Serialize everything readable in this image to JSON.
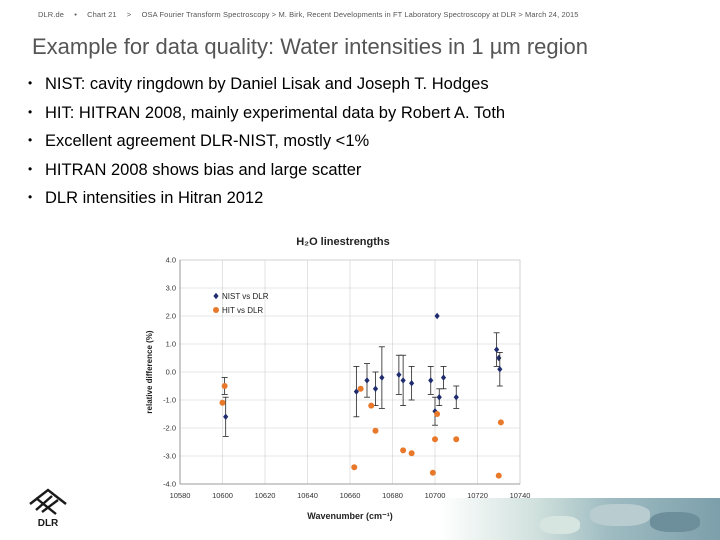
{
  "header": {
    "org": "DLR.de",
    "sep": "•",
    "chart_no": "Chart 21",
    "gt": ">",
    "talk": "OSA Fourier Transform Spectroscopy > M. Birk, Recent Developments in FT Laboratory Spectroscopy at DLR > March 24, 2015"
  },
  "title": "Example for data quality: Water intensities in 1 µm region",
  "bullets": [
    "NIST: cavity ringdown by Daniel Lisak and Joseph T. Hodges",
    "HIT: HITRAN 2008, mainly experimental data by Robert A. Toth",
    "Excellent agreement DLR-NIST, mostly <1%",
    "HITRAN 2008 shows bias and large scatter",
    "DLR intensities in Hitran 2012"
  ],
  "logo_text": "DLR",
  "colors": {
    "nist": "#1f2d6e",
    "hit": "#e8792a",
    "grid": "#d0d0d0"
  },
  "chart_data": {
    "type": "scatter",
    "title": "H₂O linestrengths",
    "xlabel": "Wavenumber (cm⁻¹)",
    "ylabel": "relative difference (%)",
    "xlim": [
      10580,
      10740
    ],
    "ylim": [
      -4.0,
      4.0
    ],
    "xticks": [
      "10580",
      "10600",
      "10620",
      "10640",
      "10660",
      "10680",
      "10700",
      "10720",
      "10740"
    ],
    "yticks": [
      "4.0",
      "3.0",
      "2.0",
      "1.0",
      "0.0",
      "-1.0",
      "-2.0",
      "-3.0",
      "-4.0"
    ],
    "grid": true,
    "legend_position": "top-left",
    "series": [
      {
        "name": "NIST vs DLR",
        "color": "#1f2d6e",
        "marker": "diamond",
        "points": [
          {
            "x": 10601,
            "y": -0.5,
            "err": 0.3
          },
          {
            "x": 10601.5,
            "y": -1.6,
            "err": 0.7
          },
          {
            "x": 10663,
            "y": -0.7,
            "err": 0.9
          },
          {
            "x": 10668,
            "y": -0.3,
            "err": 0.6
          },
          {
            "x": 10672,
            "y": -0.6,
            "err": 0.6
          },
          {
            "x": 10675,
            "y": -0.2,
            "err": 1.1
          },
          {
            "x": 10683,
            "y": -0.1,
            "err": 0.7
          },
          {
            "x": 10685,
            "y": -0.3,
            "err": 0.9
          },
          {
            "x": 10689,
            "y": -0.4,
            "err": 0.6
          },
          {
            "x": 10698,
            "y": -0.3,
            "err": 0.5
          },
          {
            "x": 10700,
            "y": -1.4,
            "err": 0.5
          },
          {
            "x": 10701,
            "y": 2.0
          },
          {
            "x": 10702,
            "y": -0.9,
            "err": 0.3
          },
          {
            "x": 10704,
            "y": -0.2,
            "err": 0.4
          },
          {
            "x": 10710,
            "y": -0.9,
            "err": 0.4
          },
          {
            "x": 10729,
            "y": 0.8,
            "err": 0.6
          },
          {
            "x": 10730,
            "y": 0.5
          },
          {
            "x": 10730.5,
            "y": 0.1,
            "err": 0.6
          }
        ]
      },
      {
        "name": "HIT vs DLR",
        "color": "#e8792a",
        "marker": "circle",
        "points": [
          {
            "x": 10600,
            "y": -1.1
          },
          {
            "x": 10601,
            "y": -0.5
          },
          {
            "x": 10662,
            "y": -3.4
          },
          {
            "x": 10665,
            "y": -0.6
          },
          {
            "x": 10670,
            "y": -1.2
          },
          {
            "x": 10672,
            "y": -2.1
          },
          {
            "x": 10685,
            "y": -2.8
          },
          {
            "x": 10689,
            "y": -2.9
          },
          {
            "x": 10699,
            "y": -3.6
          },
          {
            "x": 10700,
            "y": -2.4
          },
          {
            "x": 10701,
            "y": -1.5
          },
          {
            "x": 10710,
            "y": -2.4
          },
          {
            "x": 10730,
            "y": -3.7
          },
          {
            "x": 10731,
            "y": -1.8
          }
        ]
      }
    ]
  }
}
